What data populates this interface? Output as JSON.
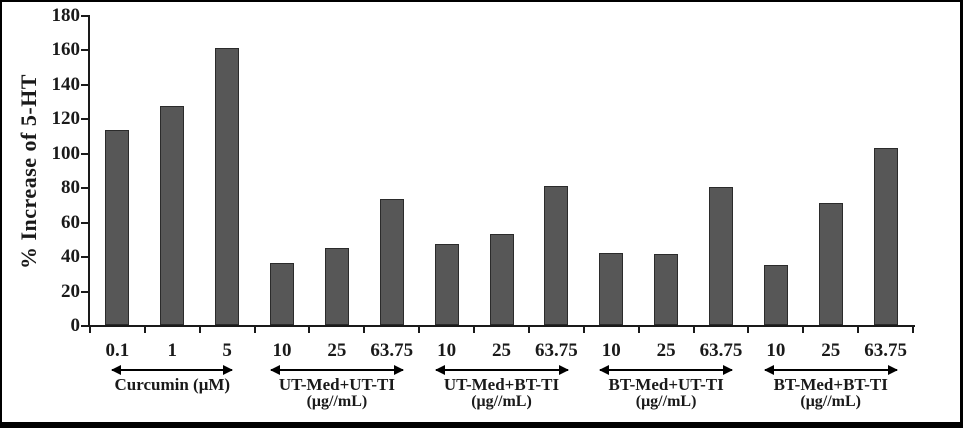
{
  "chart_data": {
    "type": "bar",
    "title": "",
    "ylabel": "% Increase of 5-HT",
    "xlabel": "",
    "ylim": [
      0,
      180
    ],
    "ytick_step": 20,
    "yticks": [
      0,
      20,
      40,
      60,
      80,
      100,
      120,
      140,
      160,
      180
    ],
    "grid": false,
    "legend": "none",
    "bar_color": "#575757",
    "groups": [
      {
        "label": "Curcumin (μM)",
        "unit_line": "",
        "categories": [
          "0.1",
          "1",
          "5"
        ],
        "values": [
          113,
          127,
          161
        ]
      },
      {
        "label": "UT-Med+UT-TI",
        "unit_line": "(μg//mL)",
        "categories": [
          "10",
          "25",
          "63.75"
        ],
        "values": [
          36,
          45,
          73
        ]
      },
      {
        "label": "UT-Med+BT-TI",
        "unit_line": "(μg//mL)",
        "categories": [
          "10",
          "25",
          "63.75"
        ],
        "values": [
          47,
          53,
          81
        ]
      },
      {
        "label": "BT-Med+UT-TI",
        "unit_line": "(μg//mL)",
        "categories": [
          "10",
          "25",
          "63.75"
        ],
        "values": [
          42,
          41,
          80
        ]
      },
      {
        "label": "BT-Med+BT-TI",
        "unit_line": "(μg//mL)",
        "categories": [
          "10",
          "25",
          "63.75"
        ],
        "values": [
          35,
          71,
          103
        ]
      }
    ]
  }
}
